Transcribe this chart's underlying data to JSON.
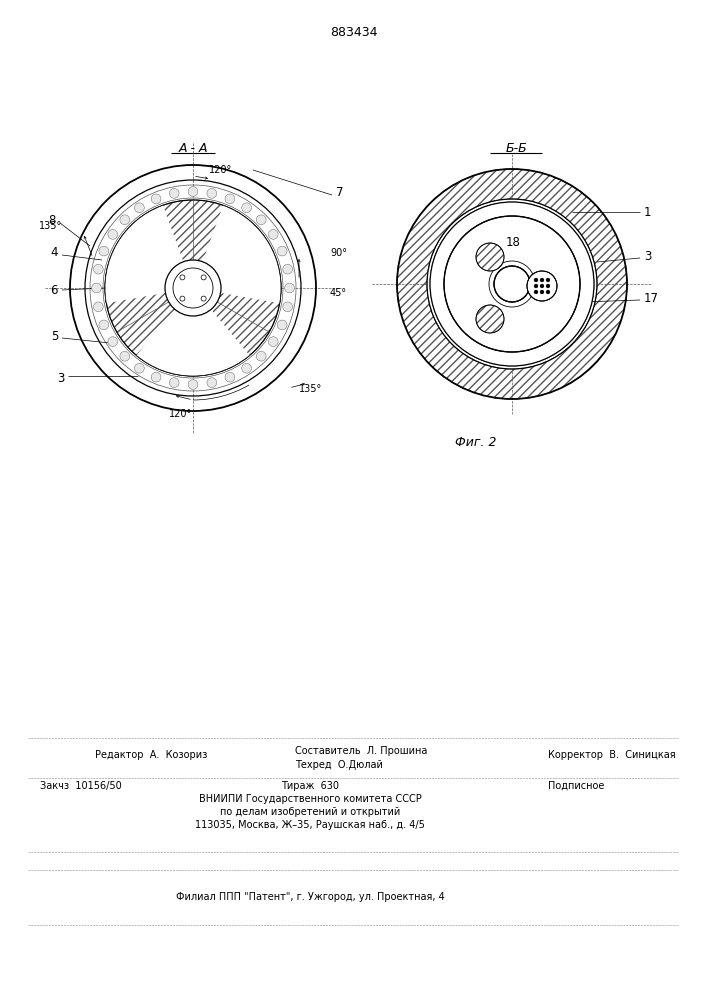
{
  "title_number": "883434",
  "fig_label": "Фиг. 2",
  "view_AA_label": "A - A",
  "view_BB_label": "Б-Б",
  "bg_color": "#ffffff",
  "line_color": "#000000",
  "footer_line1_left": "Редактор  А.  Козориз",
  "footer_line1_mid1": "Составитель  Л. Прошина",
  "footer_line1_mid2": "Техред  О.Дюлай",
  "footer_line1_right": "Корректор  В.  Синицкая",
  "footer_line2_left": "Закчз  10156/50",
  "footer_line2_mid1": "Тираж  630",
  "footer_line2_right": "Подписное",
  "footer_line3_mid": "ВНИИПИ Государственного комитета СССР",
  "footer_line4_mid": "по делам изобретений и открытий",
  "footer_line5_mid": "113035, Москва, Ж–35, Раушская наб., д. 4/5",
  "footer_filial": "Филиал ППП \"Патент\", г. Ужгород, ул. Проектная, 4"
}
